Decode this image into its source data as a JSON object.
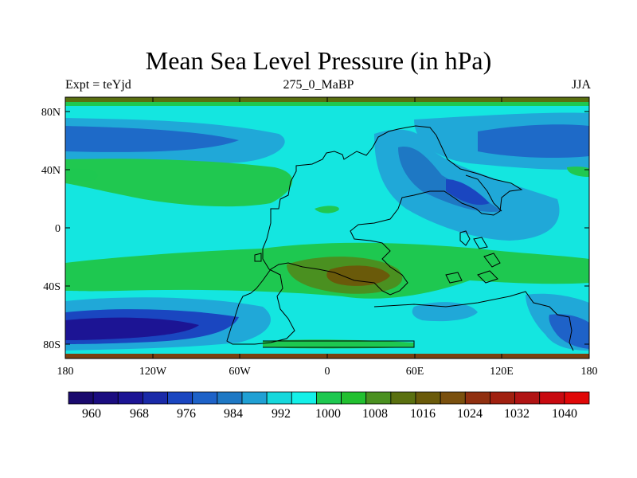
{
  "title": "Mean Sea Level Pressure (in hPa)",
  "subtitle_left": "Expt = teYjd",
  "subtitle_center": "275_0_MaBP",
  "subtitle_right": "JJA",
  "y_ticks": [
    "80N",
    "40N",
    "0",
    "40S",
    "80S"
  ],
  "x_ticks": [
    "180",
    "120W",
    "60W",
    "0",
    "60E",
    "120E",
    "180"
  ],
  "colorbar_labels": [
    "960",
    "968",
    "976",
    "984",
    "992",
    "1000",
    "1008",
    "1016",
    "1024",
    "1032",
    "1040"
  ],
  "colorbar_colors": [
    "#1a0a6e",
    "#1b0d80",
    "#1c1494",
    "#1a2aa8",
    "#1a46c0",
    "#1e62c8",
    "#1e78c4",
    "#20a0d4",
    "#16d8dc",
    "#14f0e8",
    "#1ec850",
    "#22c030",
    "#4a9020",
    "#5a7010",
    "#6a5a0a",
    "#7a500e",
    "#903010",
    "#a02010",
    "#b01414",
    "#c80a10",
    "#e00808"
  ],
  "chart_data": {
    "type": "heatmap",
    "title": "Mean Sea Level Pressure (in hPa)",
    "units": "hPa",
    "x_range": [
      -180,
      180
    ],
    "y_range": [
      -90,
      90
    ],
    "x_tick_labels": [
      "180",
      "120W",
      "60W",
      "0",
      "60E",
      "120E",
      "180"
    ],
    "y_tick_labels": [
      "80N",
      "40N",
      "0",
      "40S",
      "80S"
    ],
    "colorbar_levels": [
      960,
      968,
      976,
      984,
      992,
      1000,
      1008,
      1016,
      1024,
      1032,
      1040
    ]
  }
}
